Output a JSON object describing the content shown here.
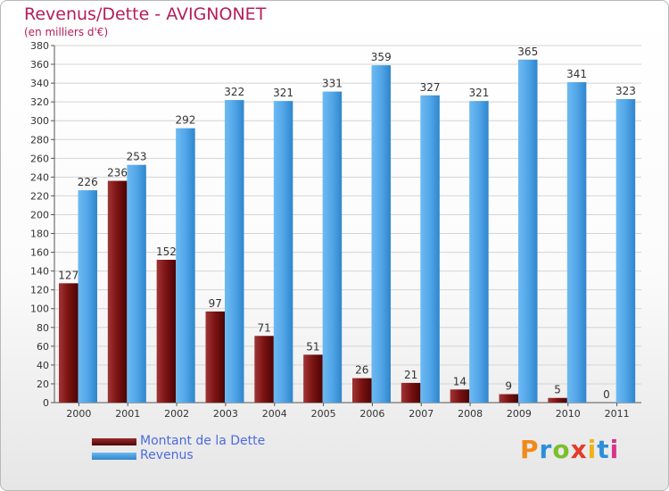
{
  "title": "Revenus/Dette - AVIGNONET",
  "subtitle": "(en milliers d'€)",
  "colors": {
    "dette": "#7a1212",
    "revenus": "#4fa3e6",
    "title": "#b51d5b",
    "legend_text": "#4c6be0"
  },
  "legend": [
    {
      "label": "Montant de la Dette",
      "color": "#7a1212"
    },
    {
      "label": "Revenus",
      "color": "#4fa3e6"
    }
  ],
  "logo_text": "Proxiti",
  "chart_data": {
    "type": "bar",
    "title": "Revenus/Dette - AVIGNONET",
    "subtitle": "(en milliers d'€)",
    "categories": [
      "2000",
      "2001",
      "2002",
      "2003",
      "2004",
      "2005",
      "2006",
      "2007",
      "2008",
      "2009",
      "2010",
      "2011"
    ],
    "series": [
      {
        "name": "Montant de la Dette",
        "values": [
          127,
          236,
          152,
          97,
          71,
          51,
          26,
          21,
          14,
          9,
          5,
          0
        ]
      },
      {
        "name": "Revenus",
        "values": [
          226,
          253,
          292,
          322,
          321,
          331,
          359,
          327,
          321,
          365,
          341,
          323
        ]
      }
    ],
    "ylim": [
      0,
      380
    ],
    "yticks": [
      0,
      20,
      40,
      60,
      80,
      100,
      120,
      140,
      160,
      180,
      200,
      220,
      240,
      260,
      280,
      300,
      320,
      340,
      360,
      380
    ],
    "grid": true,
    "xlabel": "",
    "ylabel": "",
    "legend_position": "bottom-left"
  }
}
